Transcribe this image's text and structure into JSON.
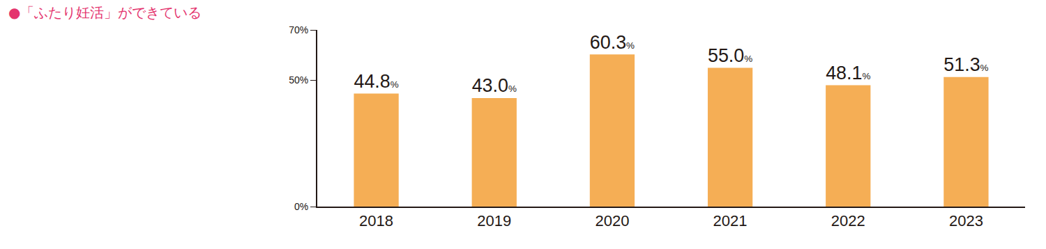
{
  "chart_data": {
    "type": "bar",
    "title": "●「ふたり妊活」ができている",
    "categories": [
      "2018",
      "2019",
      "2020",
      "2021",
      "2022",
      "2023"
    ],
    "values": [
      44.8,
      43.0,
      60.3,
      55.0,
      48.1,
      51.3
    ],
    "value_labels": [
      "44.8%",
      "43.0%",
      "60.3%",
      "55.0%",
      "48.1%",
      "51.3%"
    ],
    "data_labels": true,
    "color": "#f5ae55",
    "ylim": [
      0,
      70
    ],
    "yticks": [
      {
        "value": 0,
        "label": "0%"
      },
      {
        "value": 50,
        "label": "50%"
      },
      {
        "value": 70,
        "label": "70%"
      }
    ],
    "grid": false
  }
}
